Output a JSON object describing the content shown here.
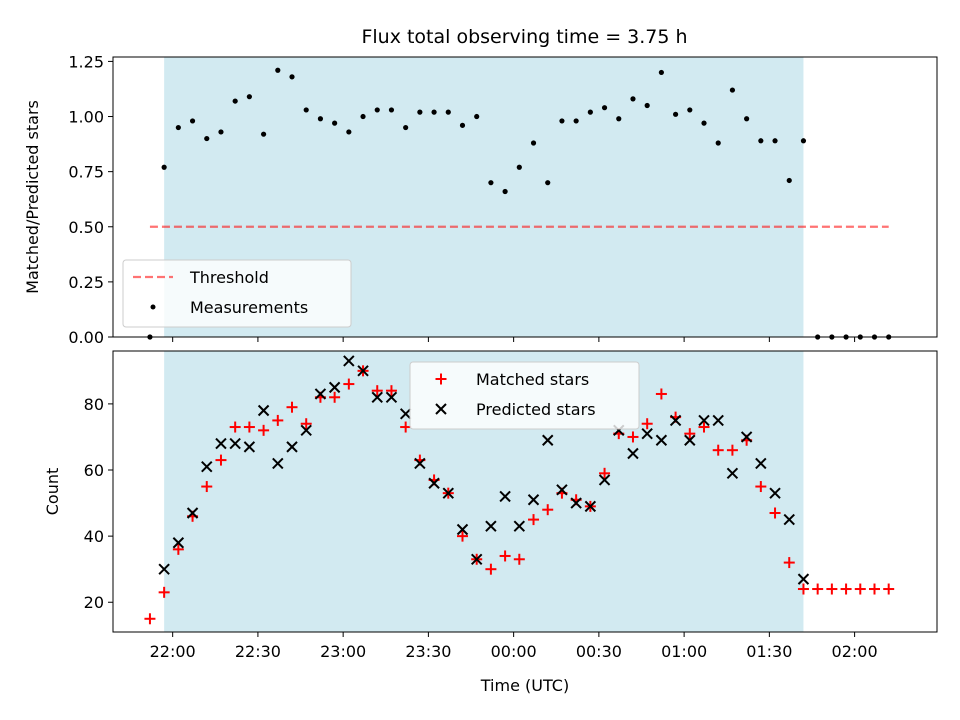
{
  "title": "Flux total observing time = 3.75 h",
  "colors": {
    "shade": "#add8e6",
    "threshold": "#ff0000",
    "matched": "#ff0000",
    "predicted": "#000000",
    "measurement": "#000000"
  },
  "chart_data": [
    {
      "type": "scatter",
      "ylabel": "Matched/Predicted stars",
      "ylim": [
        0,
        1.27
      ],
      "yticks": [
        "0.00",
        "0.25",
        "0.50",
        "0.75",
        "1.00",
        "1.25"
      ],
      "xlim": [
        "21:39",
        "02:29"
      ],
      "observing_window": [
        "21:57",
        "01:42"
      ],
      "legend": {
        "position": "lower-left",
        "entries": [
          "Threshold",
          "Measurements"
        ]
      },
      "threshold": {
        "name": "Threshold",
        "value": 0.5,
        "x_range": [
          "21:52",
          "02:12"
        ]
      },
      "series": [
        {
          "name": "Measurements",
          "marker": "dot",
          "x": [
            "21:52",
            "21:57",
            "22:02",
            "22:07",
            "22:12",
            "22:17",
            "22:22",
            "22:27",
            "22:32",
            "22:37",
            "22:42",
            "22:47",
            "22:52",
            "22:57",
            "23:02",
            "23:07",
            "23:12",
            "23:17",
            "23:22",
            "23:27",
            "23:32",
            "23:37",
            "23:42",
            "23:47",
            "23:52",
            "23:57",
            "00:02",
            "00:07",
            "00:12",
            "00:17",
            "00:22",
            "00:27",
            "00:32",
            "00:37",
            "00:42",
            "00:47",
            "00:52",
            "00:57",
            "01:02",
            "01:07",
            "01:12",
            "01:17",
            "01:22",
            "01:27",
            "01:32",
            "01:37",
            "01:42",
            "01:47",
            "01:52",
            "01:57",
            "02:02",
            "02:07",
            "02:12"
          ],
          "values": [
            0.0,
            0.77,
            0.95,
            0.98,
            0.9,
            0.93,
            1.07,
            1.09,
            0.92,
            1.21,
            1.18,
            1.03,
            0.99,
            0.97,
            0.93,
            1.0,
            1.03,
            1.03,
            0.95,
            1.02,
            1.02,
            1.02,
            0.96,
            1.0,
            0.7,
            0.66,
            0.77,
            0.88,
            0.7,
            0.98,
            0.98,
            1.02,
            1.04,
            0.99,
            1.08,
            1.05,
            1.2,
            1.01,
            1.03,
            0.97,
            0.88,
            1.12,
            0.99,
            0.89,
            0.89,
            0.71,
            0.89,
            0.0,
            0.0,
            0.0,
            0.0,
            0.0,
            0.0
          ]
        }
      ]
    },
    {
      "type": "scatter",
      "xlabel": "Time (UTC)",
      "ylabel": "Count",
      "ylim": [
        11,
        96
      ],
      "yticks": [
        "20",
        "40",
        "60",
        "80"
      ],
      "xlim": [
        "21:39",
        "02:29"
      ],
      "xticks": [
        "22:00",
        "22:30",
        "23:00",
        "23:30",
        "00:00",
        "00:30",
        "01:00",
        "01:30",
        "02:00"
      ],
      "observing_window": [
        "21:57",
        "01:42"
      ],
      "legend": {
        "position": "upper-center",
        "entries": [
          "Matched stars",
          "Predicted stars"
        ]
      },
      "series": [
        {
          "name": "Matched stars",
          "marker": "plus",
          "x": [
            "21:52",
            "21:57",
            "22:02",
            "22:07",
            "22:12",
            "22:17",
            "22:22",
            "22:27",
            "22:32",
            "22:37",
            "22:42",
            "22:47",
            "22:52",
            "22:57",
            "23:02",
            "23:07",
            "23:12",
            "23:17",
            "23:22",
            "23:27",
            "23:32",
            "23:37",
            "23:42",
            "23:47",
            "23:52",
            "23:57",
            "00:02",
            "00:07",
            "00:12",
            "00:17",
            "00:22",
            "00:27",
            "00:32",
            "00:37",
            "00:42",
            "00:47",
            "00:52",
            "00:57",
            "01:02",
            "01:07",
            "01:12",
            "01:17",
            "01:22",
            "01:27",
            "01:32",
            "01:37",
            "01:42",
            "01:47",
            "01:52",
            "01:57",
            "02:02",
            "02:07",
            "02:12"
          ],
          "values": [
            15,
            23,
            36,
            46,
            55,
            63,
            73,
            73,
            72,
            75,
            79,
            74,
            82,
            82,
            86,
            90,
            84,
            84,
            73,
            63,
            57,
            53,
            40,
            33,
            30,
            34,
            33,
            45,
            48,
            53,
            51,
            49,
            59,
            71,
            70,
            74,
            83,
            76,
            71,
            73,
            66,
            66,
            69,
            55,
            47,
            32,
            24,
            24,
            24,
            24,
            24,
            24,
            24
          ]
        },
        {
          "name": "Predicted stars",
          "marker": "x",
          "x": [
            "21:57",
            "22:02",
            "22:07",
            "22:12",
            "22:17",
            "22:22",
            "22:27",
            "22:32",
            "22:37",
            "22:42",
            "22:47",
            "22:52",
            "22:57",
            "23:02",
            "23:07",
            "23:12",
            "23:17",
            "23:22",
            "23:27",
            "23:32",
            "23:37",
            "23:42",
            "23:47",
            "23:52",
            "23:57",
            "00:02",
            "00:07",
            "00:12",
            "00:17",
            "00:22",
            "00:27",
            "00:32",
            "00:37",
            "00:42",
            "00:47",
            "00:52",
            "00:57",
            "01:02",
            "01:07",
            "01:12",
            "01:17",
            "01:22",
            "01:27",
            "01:32",
            "01:37",
            "01:42"
          ],
          "values": [
            30,
            38,
            47,
            61,
            68,
            68,
            67,
            78,
            62,
            67,
            72,
            83,
            85,
            93,
            90,
            82,
            82,
            77,
            62,
            56,
            53,
            42,
            33,
            43,
            52,
            43,
            51,
            69,
            54,
            50,
            49,
            57,
            72,
            65,
            71,
            69,
            75,
            69,
            75,
            75,
            59,
            70,
            62,
            53,
            45,
            27
          ]
        }
      ]
    }
  ]
}
